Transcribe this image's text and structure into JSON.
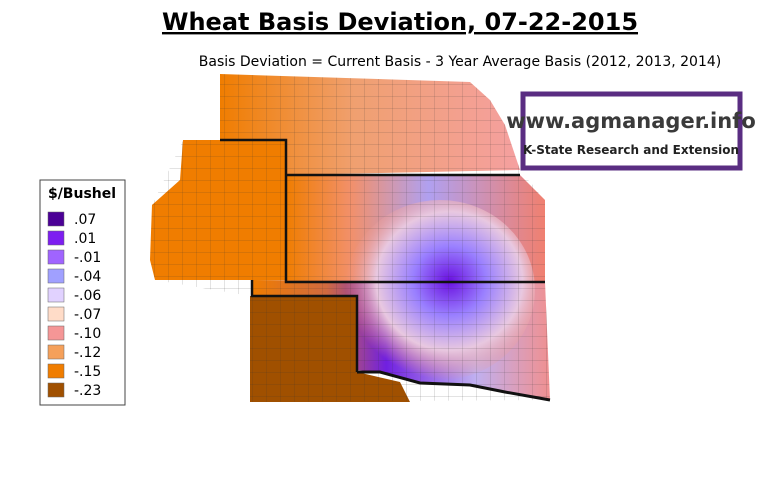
{
  "header": {
    "title": "Wheat Basis Deviation, 07-22-2015",
    "subtitle": "Basis Deviation = Current Basis - 3 Year Average Basis (2012, 2013, 2014)"
  },
  "legend": {
    "title": "$/Bushel",
    "items": [
      {
        "label": ".07",
        "color": "#4b0096"
      },
      {
        "label": ".01",
        "color": "#7d1ef0"
      },
      {
        "label": "-.01",
        "color": "#a064ff"
      },
      {
        "label": "-.04",
        "color": "#a0a0ff"
      },
      {
        "label": "-.06",
        "color": "#e1d2ff"
      },
      {
        "label": "-.07",
        "color": "#ffdcc8"
      },
      {
        "label": "-.10",
        "color": "#f59696"
      },
      {
        "label": "-.12",
        "color": "#f5a05a"
      },
      {
        "label": "-.15",
        "color": "#f07d00"
      },
      {
        "label": "-.23",
        "color": "#a05000"
      }
    ]
  },
  "logo": {
    "url": "www.agmanager.info",
    "tagline": "K-State Research and Extension"
  }
}
